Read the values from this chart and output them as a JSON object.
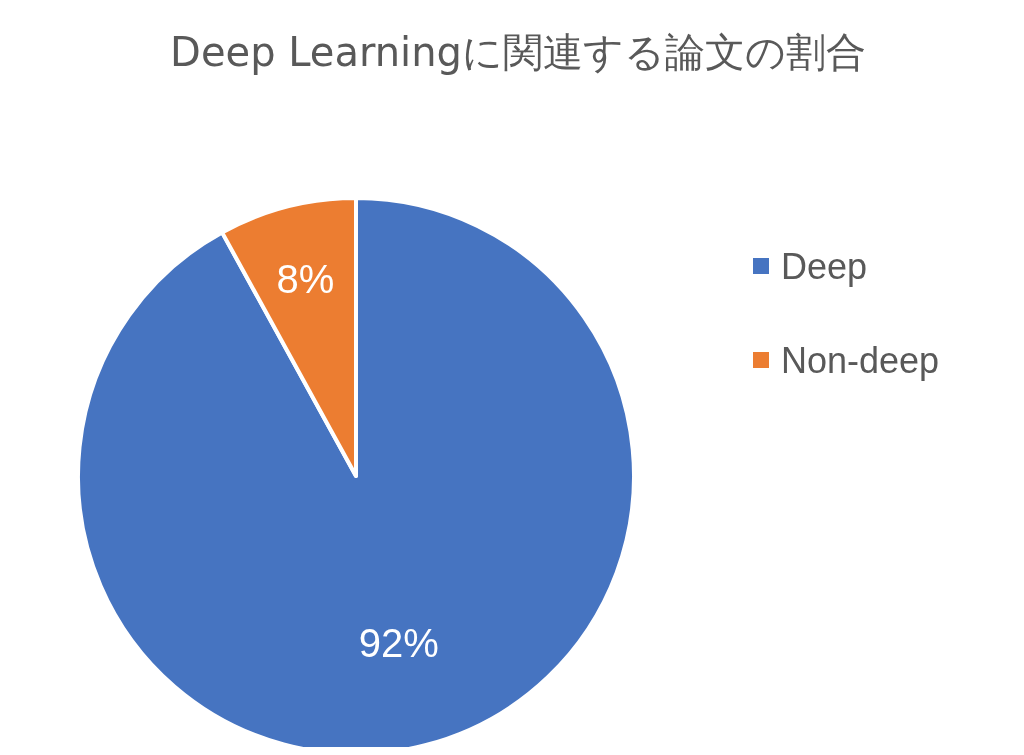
{
  "chart_data": {
    "type": "pie",
    "title": "Deep Learningに関連する論文の割合",
    "categories": [
      "Deep",
      "Non-deep"
    ],
    "values": [
      92,
      8
    ],
    "colors": [
      "#4674c1",
      "#ec7d31"
    ],
    "value_labels": [
      "92%",
      "8%"
    ],
    "legend": "right"
  }
}
